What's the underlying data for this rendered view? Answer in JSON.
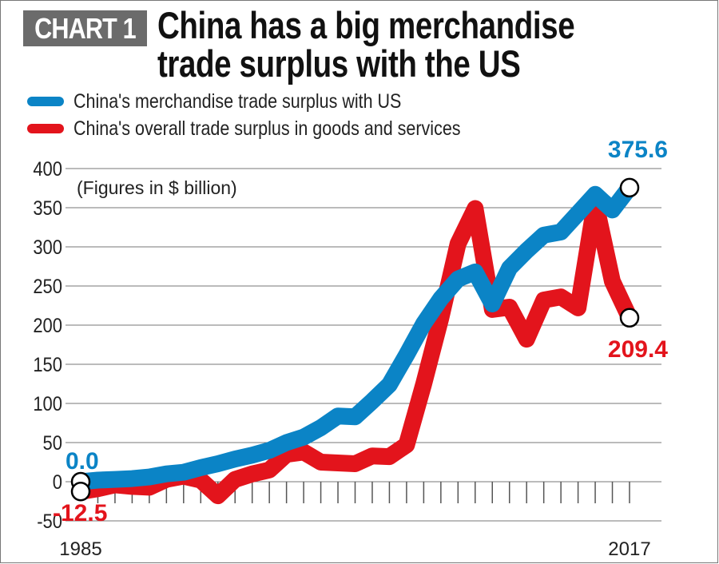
{
  "header": {
    "tag": "CHART 1",
    "title_line1": "China has a big merchandise",
    "title_line2": "trade surplus with the US"
  },
  "colors": {
    "blue": "#0b84c6",
    "red": "#e3141c",
    "tag_bg": "#6b6b6b"
  },
  "chart_data": {
    "type": "line",
    "annotation": "(Figures in $ billion)",
    "x": [
      1985,
      1986,
      1987,
      1988,
      1989,
      1990,
      1991,
      1992,
      1993,
      1994,
      1995,
      1996,
      1997,
      1998,
      1999,
      2000,
      2001,
      2002,
      2003,
      2004,
      2005,
      2006,
      2007,
      2008,
      2009,
      2010,
      2011,
      2012,
      2013,
      2014,
      2015,
      2016,
      2017
    ],
    "x_tick_labels": [
      "1985",
      "2017"
    ],
    "y_ticks": [
      -50,
      0,
      50,
      100,
      150,
      200,
      250,
      300,
      350,
      400
    ],
    "y_tick_labels": [
      "-50",
      "0",
      "50",
      "100",
      "150",
      "200",
      "250",
      "300",
      "350",
      "400"
    ],
    "ylim": [
      -50,
      400
    ],
    "grid": true,
    "legend_position": "top-left",
    "series": [
      {
        "name": "China's merchandise trade surplus with US",
        "color": "#0b84c6",
        "values": [
          0,
          2,
          3,
          4,
          6,
          10,
          12,
          18,
          23,
          29,
          34,
          40,
          50,
          57,
          69,
          84,
          83,
          103,
          124,
          162,
          202,
          234,
          259,
          268,
          227,
          273,
          295,
          315,
          319,
          343,
          367,
          347,
          375.6
        ],
        "end_labels": {
          "start": "0.0",
          "end": "375.6"
        }
      },
      {
        "name": "China's overall trade surplus in goods and services",
        "color": "#e3141c",
        "values": [
          -12.5,
          -9,
          -4,
          -6,
          -7,
          3,
          7,
          2,
          -18,
          3,
          10,
          15,
          35,
          38,
          25,
          24,
          23,
          33,
          32,
          47,
          125,
          209,
          304,
          349,
          220,
          223,
          182,
          232,
          236,
          222,
          357,
          256,
          209.4
        ],
        "end_labels": {
          "start": "-12.5",
          "end": "209.4"
        }
      }
    ]
  }
}
